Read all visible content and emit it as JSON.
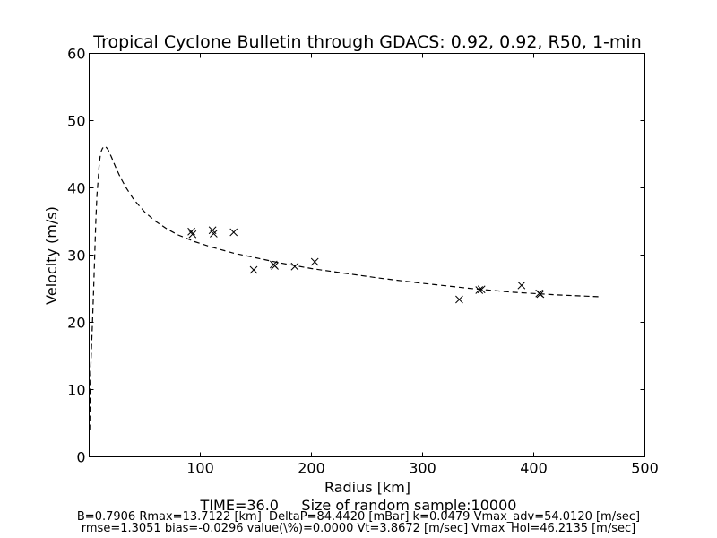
{
  "chart_data": {
    "type": "scatter",
    "title": "Tropical Cyclone Bulletin through GDACS: 0.92, 0.92, R50, 1-min",
    "xlabel": "Radius [km]",
    "ylabel": "Velocity (m/s)",
    "xlim": [
      0,
      500
    ],
    "ylim": [
      0,
      60
    ],
    "xticks": [
      100,
      200,
      300,
      400,
      500
    ],
    "xtick_labels": [
      "100",
      "200",
      "300",
      "400",
      "500"
    ],
    "yticks": [
      0,
      10,
      20,
      30,
      40,
      50,
      60
    ],
    "ytick_labels": [
      "0",
      "10",
      "20",
      "30",
      "40",
      "50",
      "60"
    ],
    "grid": false,
    "series": [
      {
        "kind": "line",
        "style": "dashed",
        "x": [
          0.5,
          1,
          2,
          3,
          4,
          5,
          6,
          7,
          8,
          9,
          10,
          11,
          12,
          13.7,
          15,
          17,
          20,
          24,
          28,
          33,
          40,
          50,
          60,
          70,
          80,
          95,
          110,
          130,
          150,
          170,
          200,
          230,
          260,
          300,
          340,
          380,
          420,
          460
        ],
        "y": [
          4,
          11,
          16,
          20,
          25,
          30,
          35,
          39,
          41,
          43.5,
          44.8,
          45.5,
          45.9,
          46.2,
          46.1,
          45.7,
          44.6,
          43,
          41.6,
          40.1,
          38.3,
          36.4,
          35,
          33.9,
          33,
          32,
          31.2,
          30.3,
          29.6,
          28.9,
          28,
          27.3,
          26.6,
          25.8,
          25.1,
          24.5,
          24.1,
          23.8
        ]
      },
      {
        "kind": "markers",
        "marker": "x",
        "x": [
          92,
          93,
          111,
          112,
          130,
          148,
          166,
          167,
          185,
          203,
          333,
          351,
          353,
          389,
          405,
          406
        ],
        "y": [
          33.5,
          33.1,
          33.7,
          33.2,
          33.4,
          27.8,
          28.6,
          28.4,
          28.3,
          29.0,
          23.4,
          24.8,
          24.9,
          25.5,
          24.3,
          24.2
        ]
      }
    ]
  },
  "footer": {
    "line1": "TIME=36.0     Size of random sample:10000",
    "line2": "B=0.7906 Rmax=13.7122 [km]  DeltaP=84.4420 [mBar] k=0.0479 Vmax_adv=54.0120 [m/sec]",
    "line3": "rmse=1.3051 bias=-0.0296 value(\\%)=0.0000 Vt=3.8672 [m/sec] Vmax_Hol=46.2135 [m/sec]"
  }
}
